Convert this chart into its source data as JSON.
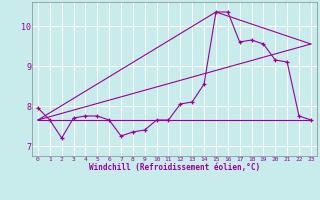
{
  "xlabel": "Windchill (Refroidissement éolien,°C)",
  "bg_color": "#c8ecec",
  "line_color": "#990099",
  "grid_color": "#ffffff",
  "spine_color": "#888888",
  "xlim": [
    -0.5,
    23.5
  ],
  "ylim": [
    6.75,
    10.6
  ],
  "yticks": [
    7,
    8,
    9,
    10
  ],
  "xticks": [
    0,
    1,
    2,
    3,
    4,
    5,
    6,
    7,
    8,
    9,
    10,
    11,
    12,
    13,
    14,
    15,
    16,
    17,
    18,
    19,
    20,
    21,
    22,
    23
  ],
  "line1_x": [
    0,
    1,
    2,
    3,
    4,
    5,
    6,
    7,
    8,
    9,
    10,
    11,
    12,
    13,
    14,
    15,
    16,
    17,
    18,
    19,
    20,
    21,
    22,
    23
  ],
  "line1_y": [
    7.95,
    7.65,
    7.2,
    7.7,
    7.75,
    7.75,
    7.65,
    7.25,
    7.35,
    7.4,
    7.65,
    7.65,
    8.05,
    8.1,
    8.55,
    10.35,
    10.35,
    9.6,
    9.65,
    9.55,
    9.15,
    9.1,
    7.75,
    7.65
  ],
  "line2_x": [
    0,
    14,
    23
  ],
  "line2_y": [
    7.65,
    7.65,
    7.65
  ],
  "line3_x": [
    0,
    23
  ],
  "line3_y": [
    7.65,
    9.55
  ],
  "line4_x": [
    0,
    15,
    23
  ],
  "line4_y": [
    7.65,
    10.35,
    9.55
  ]
}
